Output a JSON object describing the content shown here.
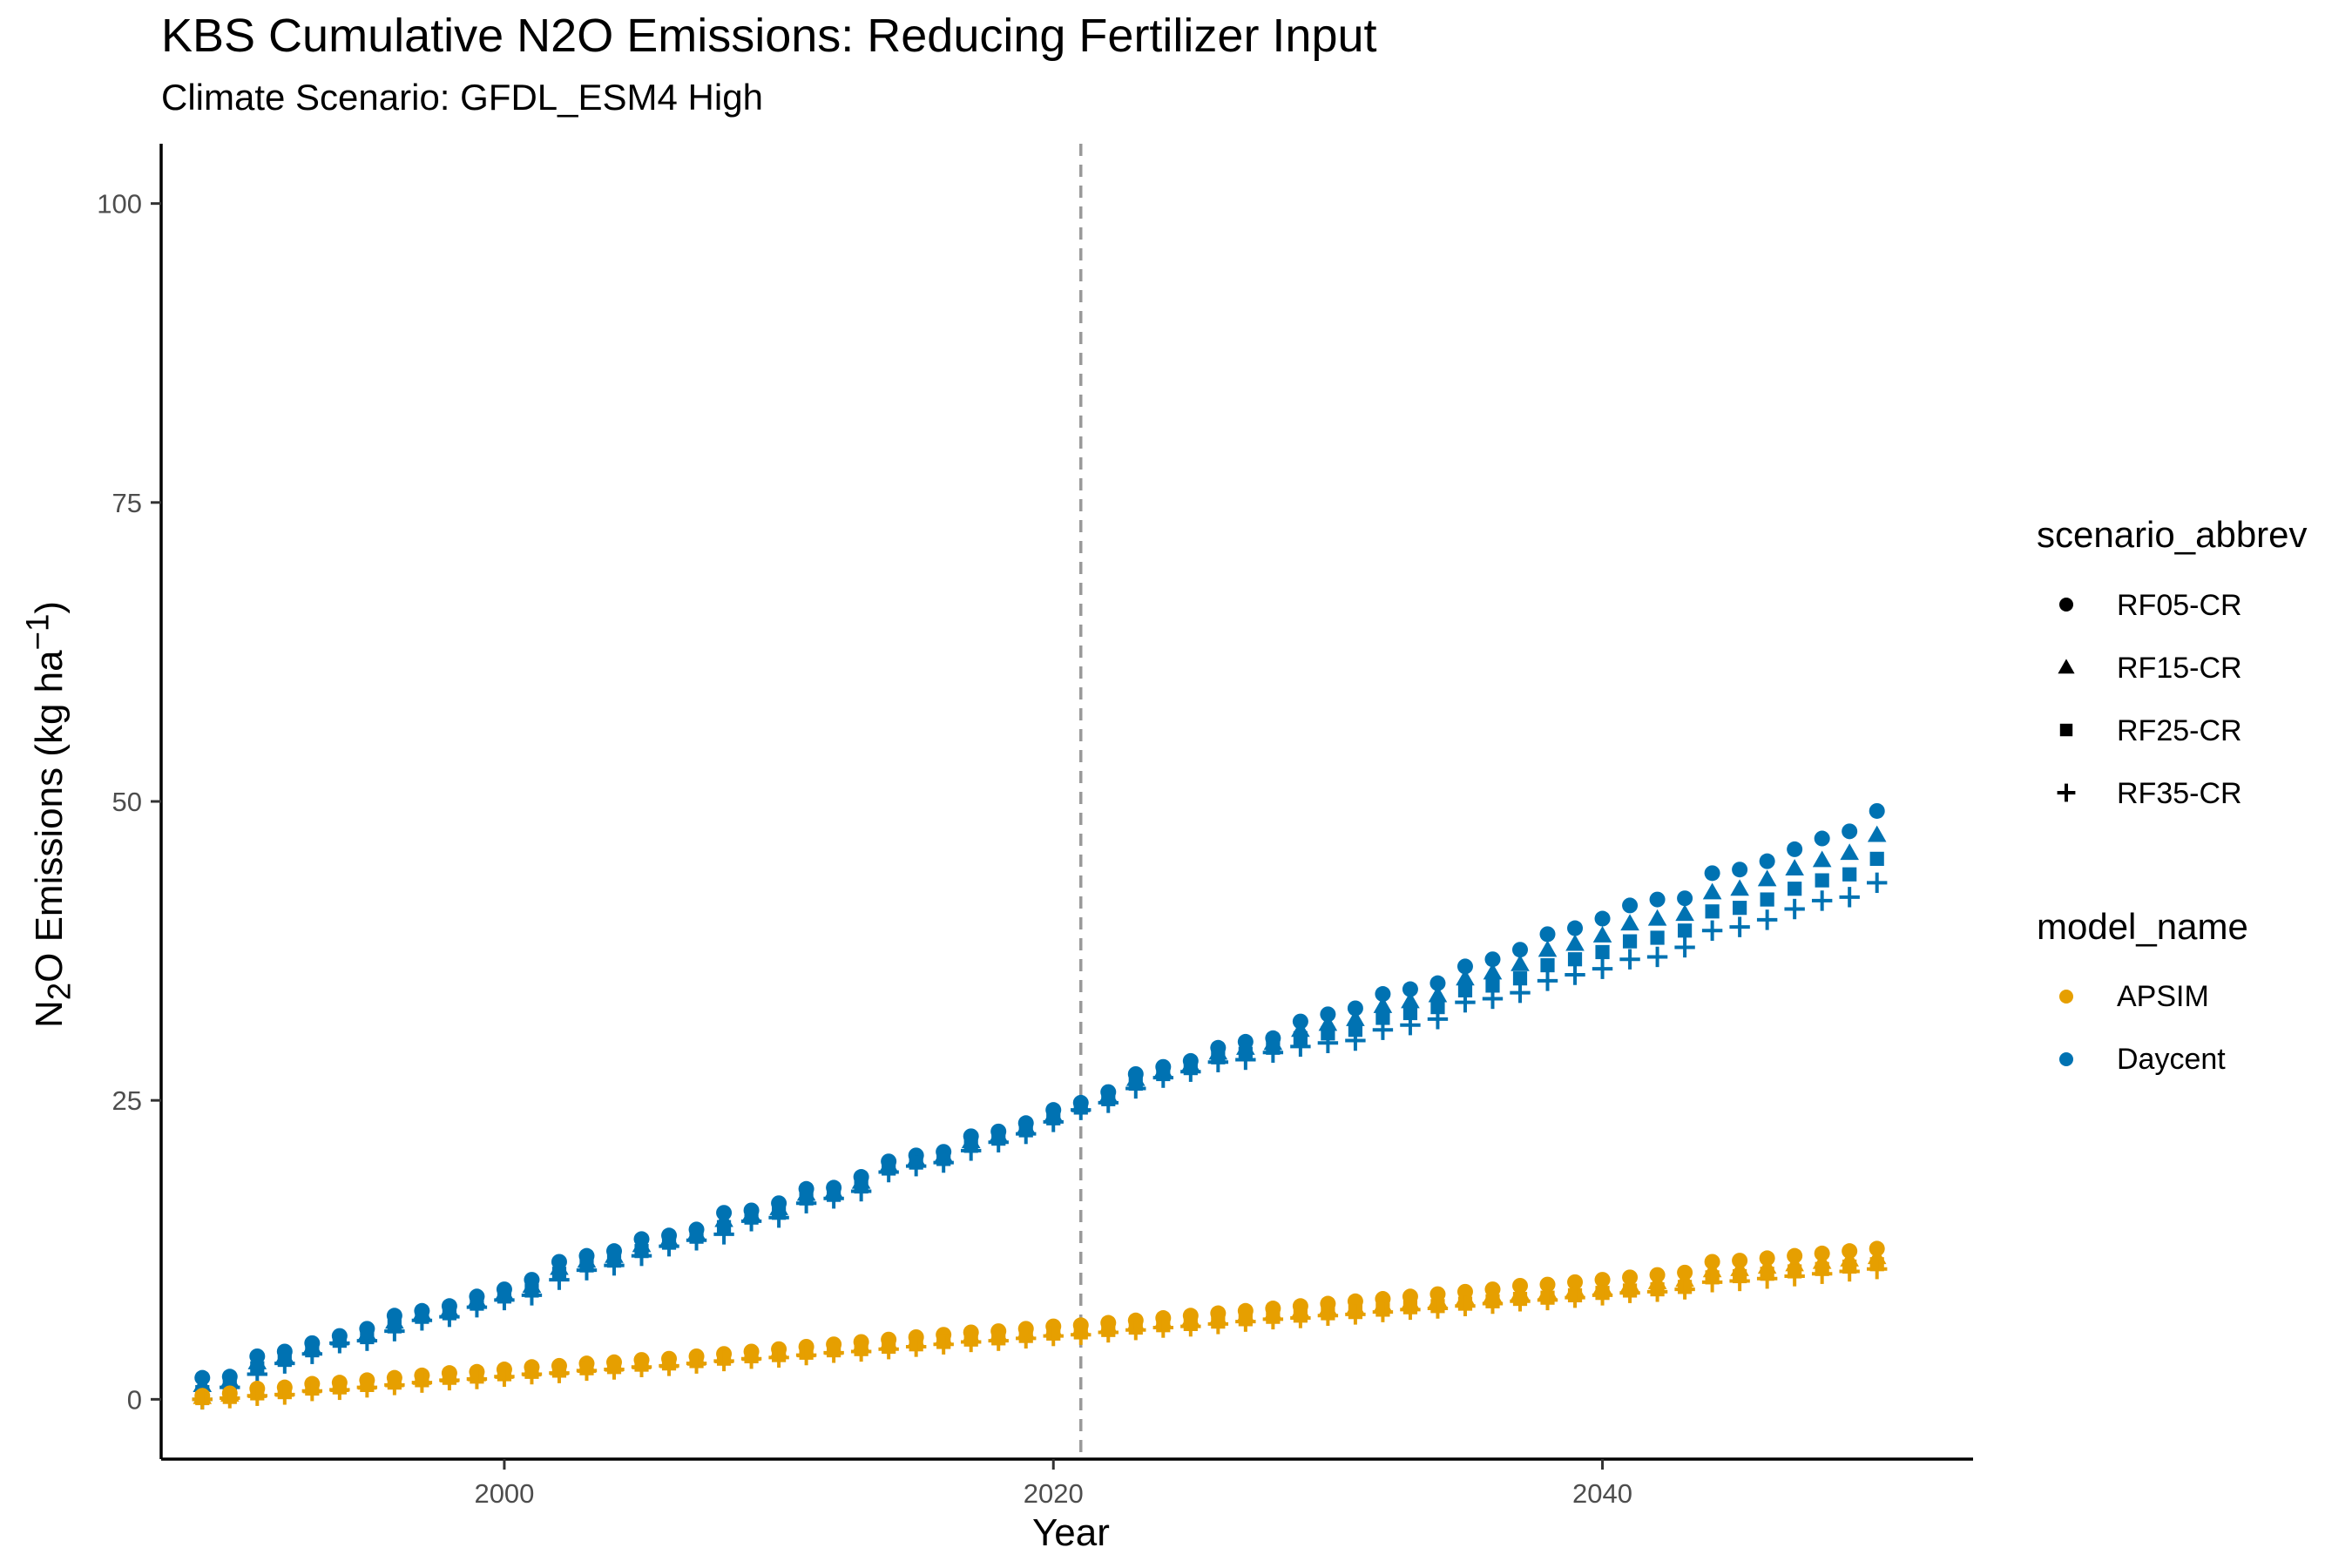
{
  "chart_data": {
    "type": "scatter",
    "title": "KBS  Cumulative N2O Emissions: Reducing Fertilizer Input",
    "subtitle": "Climate Scenario: GFDL_ESM4 High",
    "xlabel": "Year",
    "ylabel": "N2O Emissions (kg ha-1)",
    "xlim": [
      1987.5,
      2053.5
    ],
    "ylim": [
      -5,
      105
    ],
    "x_ticks": [
      2000,
      2020,
      2040
    ],
    "y_ticks": [
      0,
      25,
      50,
      75,
      100
    ],
    "vline": {
      "x": 2021,
      "style": "dashed",
      "color": "#999999"
    },
    "grid": false,
    "legend_position": "right",
    "x": [
      1989,
      1990,
      1991,
      1992,
      1993,
      1994,
      1995,
      1996,
      1997,
      1998,
      1999,
      2000,
      2001,
      2002,
      2003,
      2004,
      2005,
      2006,
      2007,
      2008,
      2009,
      2010,
      2011,
      2012,
      2013,
      2014,
      2015,
      2016,
      2017,
      2018,
      2019,
      2020,
      2021,
      2022,
      2023,
      2024,
      2025,
      2026,
      2027,
      2028,
      2029,
      2030,
      2031,
      2032,
      2033,
      2034,
      2035,
      2036,
      2037,
      2038,
      2039,
      2040,
      2041,
      2042,
      2043,
      2044,
      2045,
      2046,
      2047,
      2048,
      2049,
      2050
    ],
    "legends": [
      {
        "title": "scenario_abbrev",
        "entries": [
          {
            "label": "RF05-CR",
            "shape": "circle"
          },
          {
            "label": "RF15-CR",
            "shape": "triangle"
          },
          {
            "label": "RF25-CR",
            "shape": "square"
          },
          {
            "label": "RF35-CR",
            "shape": "plus"
          }
        ]
      },
      {
        "title": "model_name",
        "entries": [
          {
            "label": "APSIM",
            "color": "#E69F00"
          },
          {
            "label": "Daycent",
            "color": "#0072B2"
          }
        ]
      }
    ],
    "series": [
      {
        "model": "Daycent",
        "scenario": "RF05-CR",
        "color": "#0072B2",
        "shape": "circle",
        "values": [
          1.8,
          1.9,
          3.6,
          4.0,
          4.7,
          5.3,
          5.9,
          7.0,
          7.4,
          7.8,
          8.6,
          9.2,
          10.0,
          11.5,
          12.0,
          12.4,
          13.4,
          13.7,
          14.2,
          15.6,
          15.8,
          16.4,
          17.6,
          17.7,
          18.6,
          19.9,
          20.4,
          20.7,
          22.0,
          22.4,
          23.1,
          24.2,
          24.8,
          25.7,
          27.2,
          27.8,
          28.3,
          29.4,
          29.9,
          30.2,
          31.6,
          32.2,
          32.7,
          33.9,
          34.3,
          34.8,
          36.2,
          36.8,
          37.6,
          38.9,
          39.4,
          40.2,
          41.3,
          41.8,
          41.9,
          44.0,
          44.3,
          45.0,
          46.0,
          46.9,
          47.5,
          49.2
        ]
      },
      {
        "model": "Daycent",
        "scenario": "RF15-CR",
        "color": "#0072B2",
        "shape": "triangle",
        "values": [
          1.2,
          1.6,
          3.1,
          3.6,
          4.4,
          5.1,
          5.5,
          6.5,
          7.2,
          7.5,
          8.3,
          8.9,
          9.5,
          11.0,
          11.6,
          12.0,
          12.9,
          13.4,
          13.9,
          15.0,
          15.5,
          16.0,
          17.2,
          17.4,
          18.2,
          19.6,
          20.1,
          20.4,
          21.6,
          22.1,
          22.8,
          23.8,
          24.6,
          25.4,
          26.8,
          27.5,
          28.0,
          29.0,
          29.4,
          29.8,
          30.9,
          31.4,
          31.8,
          32.9,
          33.3,
          33.8,
          35.2,
          35.7,
          36.4,
          37.6,
          38.1,
          38.8,
          39.8,
          40.2,
          40.6,
          42.4,
          42.7,
          43.5,
          44.4,
          45.1,
          45.7,
          47.2
        ]
      },
      {
        "model": "Daycent",
        "scenario": "RF25-CR",
        "color": "#0072B2",
        "shape": "square",
        "values": [
          0.6,
          1.3,
          2.6,
          3.3,
          4.1,
          4.9,
          5.2,
          6.1,
          6.9,
          7.2,
          8.0,
          8.6,
          9.1,
          10.5,
          11.2,
          11.6,
          12.4,
          13.1,
          13.6,
          14.4,
          15.2,
          15.6,
          16.8,
          17.1,
          17.8,
          19.3,
          19.8,
          20.1,
          21.2,
          21.8,
          22.5,
          23.5,
          24.4,
          25.1,
          26.4,
          27.2,
          27.7,
          28.6,
          28.9,
          29.4,
          30.2,
          30.6,
          30.9,
          31.9,
          32.3,
          32.8,
          34.2,
          34.6,
          35.2,
          36.3,
          36.8,
          37.4,
          38.3,
          38.6,
          39.2,
          40.8,
          41.1,
          41.8,
          42.7,
          43.4,
          43.9,
          45.2
        ]
      },
      {
        "model": "Daycent",
        "scenario": "RF35-CR",
        "color": "#0072B2",
        "shape": "plus",
        "values": [
          0.0,
          1.0,
          2.1,
          3.0,
          3.8,
          4.7,
          4.9,
          5.7,
          6.6,
          6.9,
          7.7,
          8.3,
          8.7,
          10.0,
          10.8,
          11.2,
          12.0,
          12.8,
          13.3,
          13.8,
          14.9,
          15.2,
          16.4,
          16.8,
          17.4,
          19.0,
          19.5,
          19.8,
          20.8,
          21.5,
          22.2,
          23.2,
          24.2,
          24.8,
          26.0,
          26.9,
          27.4,
          28.2,
          28.4,
          29.0,
          29.5,
          29.8,
          30.0,
          30.9,
          31.3,
          31.8,
          33.2,
          33.5,
          34.0,
          35.0,
          35.5,
          36.0,
          36.8,
          37.0,
          37.8,
          39.2,
          39.5,
          40.1,
          41.0,
          41.7,
          42.0,
          43.2
        ]
      },
      {
        "model": "APSIM",
        "scenario": "RF05-CR",
        "color": "#E69F00",
        "shape": "circle",
        "values": [
          0.3,
          0.5,
          0.9,
          1.0,
          1.3,
          1.4,
          1.6,
          1.8,
          2.0,
          2.2,
          2.3,
          2.5,
          2.7,
          2.8,
          3.0,
          3.1,
          3.3,
          3.4,
          3.6,
          3.8,
          4.0,
          4.2,
          4.4,
          4.6,
          4.8,
          5.0,
          5.2,
          5.4,
          5.6,
          5.7,
          5.9,
          6.1,
          6.2,
          6.4,
          6.6,
          6.8,
          7.0,
          7.2,
          7.4,
          7.6,
          7.8,
          8.0,
          8.2,
          8.4,
          8.6,
          8.8,
          9.0,
          9.2,
          9.5,
          9.6,
          9.8,
          10.0,
          10.2,
          10.4,
          10.6,
          11.5,
          11.6,
          11.8,
          12.0,
          12.2,
          12.4,
          12.6
        ]
      },
      {
        "model": "APSIM",
        "scenario": "RF15-CR",
        "color": "#E69F00",
        "shape": "triangle",
        "values": [
          0.2,
          0.4,
          0.7,
          0.8,
          1.1,
          1.2,
          1.4,
          1.6,
          1.8,
          2.0,
          2.1,
          2.3,
          2.5,
          2.6,
          2.8,
          2.9,
          3.1,
          3.2,
          3.4,
          3.6,
          3.8,
          4.0,
          4.1,
          4.3,
          4.5,
          4.7,
          4.9,
          5.1,
          5.3,
          5.4,
          5.6,
          5.8,
          5.9,
          6.1,
          6.3,
          6.5,
          6.7,
          6.8,
          7.0,
          7.2,
          7.4,
          7.6,
          7.7,
          7.9,
          8.1,
          8.3,
          8.5,
          8.7,
          8.9,
          9.0,
          9.2,
          9.4,
          9.6,
          9.8,
          10.0,
          10.8,
          10.9,
          11.1,
          11.3,
          11.5,
          11.7,
          11.9
        ]
      },
      {
        "model": "APSIM",
        "scenario": "RF25-CR",
        "color": "#E69F00",
        "shape": "square",
        "values": [
          0.1,
          0.2,
          0.5,
          0.6,
          0.9,
          1.0,
          1.2,
          1.4,
          1.6,
          1.8,
          1.9,
          2.1,
          2.3,
          2.4,
          2.6,
          2.7,
          2.9,
          3.0,
          3.2,
          3.4,
          3.6,
          3.7,
          3.9,
          4.1,
          4.2,
          4.4,
          4.6,
          4.8,
          5.0,
          5.1,
          5.3,
          5.5,
          5.6,
          5.8,
          6.0,
          6.2,
          6.3,
          6.5,
          6.7,
          6.9,
          7.0,
          7.2,
          7.3,
          7.5,
          7.7,
          7.8,
          8.0,
          8.2,
          8.4,
          8.5,
          8.7,
          8.9,
          9.1,
          9.2,
          9.4,
          10.2,
          10.3,
          10.5,
          10.7,
          10.9,
          11.1,
          11.3
        ]
      },
      {
        "model": "APSIM",
        "scenario": "RF35-CR",
        "color": "#E69F00",
        "shape": "plus",
        "values": [
          0.0,
          0.1,
          0.3,
          0.4,
          0.7,
          0.8,
          1.0,
          1.2,
          1.4,
          1.6,
          1.7,
          1.9,
          2.1,
          2.2,
          2.4,
          2.5,
          2.7,
          2.8,
          3.0,
          3.2,
          3.4,
          3.5,
          3.7,
          3.9,
          4.0,
          4.2,
          4.4,
          4.6,
          4.8,
          4.9,
          5.1,
          5.3,
          5.4,
          5.6,
          5.8,
          6.0,
          6.1,
          6.3,
          6.5,
          6.7,
          6.8,
          7.0,
          7.1,
          7.3,
          7.5,
          7.6,
          7.8,
          8.0,
          8.2,
          8.3,
          8.5,
          8.7,
          8.9,
          9.0,
          9.2,
          9.8,
          9.9,
          10.1,
          10.3,
          10.5,
          10.7,
          10.9
        ]
      }
    ]
  }
}
